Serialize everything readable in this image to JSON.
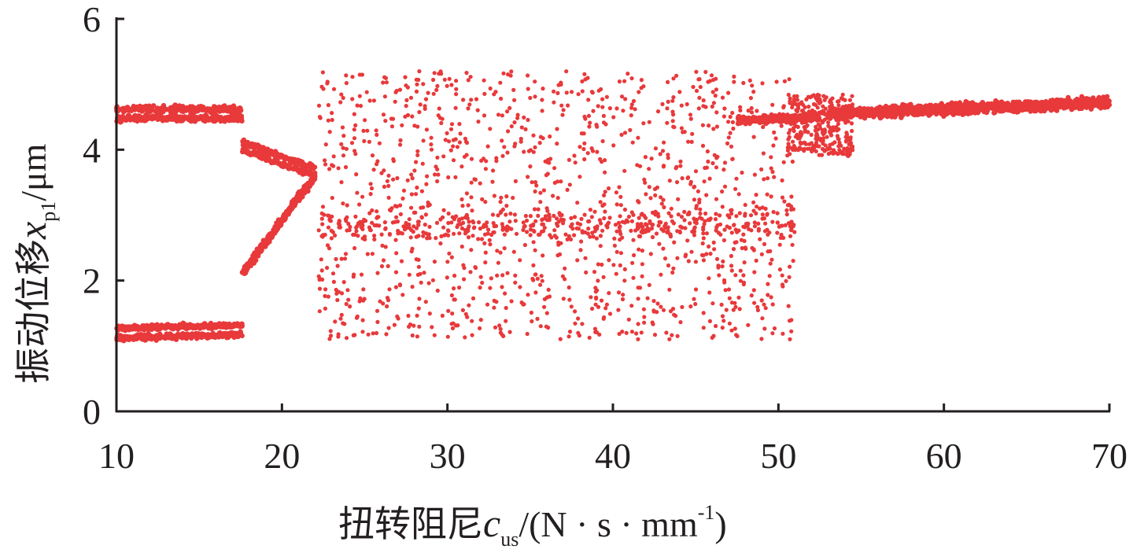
{
  "chart_data": {
    "type": "scatter",
    "title": "",
    "xlabel": {
      "prefix": "扭转阻尼",
      "var": "c",
      "sub": "us",
      "unit_open": "/(N · s · mm",
      "unit_sup": "-1",
      "unit_close": ")"
    },
    "ylabel": {
      "prefix": "振动位移",
      "var": "x",
      "sub": "p1",
      "unit": "/μm"
    },
    "xlim": [
      10,
      70
    ],
    "ylim": [
      0,
      6
    ],
    "xticks": [
      "10",
      "20",
      "30",
      "40",
      "50",
      "60",
      "70"
    ],
    "yticks": [
      "0",
      "2",
      "4",
      "6"
    ],
    "grid": false,
    "legend": "none",
    "colors": {
      "points": "#e8393b",
      "axis": "#231f20"
    },
    "series": [
      {
        "kind": "band",
        "x": [
          10,
          17.6
        ],
        "y_start": [
          4.62,
          4.48
        ],
        "y_end": [
          4.62,
          4.48
        ],
        "spread": 0.07
      },
      {
        "kind": "band",
        "x": [
          10,
          17.6
        ],
        "y_start": [
          1.27,
          1.12
        ],
        "y_end": [
          1.32,
          1.18
        ],
        "spread": 0.06
      },
      {
        "kind": "band",
        "x": [
          17.6,
          22
        ],
        "y_start": [
          4.12,
          4.0
        ],
        "y_end": [
          3.72,
          3.6
        ],
        "spread": 0.06
      },
      {
        "kind": "band",
        "x": [
          17.6,
          22
        ],
        "y_start": [
          2.1
        ],
        "y_end": [
          3.6
        ],
        "spread": 0.1
      },
      {
        "kind": "chaos",
        "x": [
          22.2,
          51
        ],
        "y": [
          1.1,
          5.2
        ],
        "approx_points": 1600
      },
      {
        "kind": "band",
        "x": [
          47.5,
          52.5
        ],
        "y_start": [
          4.45
        ],
        "y_end": [
          4.5
        ],
        "spread": 0.08
      },
      {
        "kind": "cloud",
        "x": [
          50.5,
          54.5
        ],
        "y": [
          3.9,
          4.85
        ],
        "approx_points": 300
      },
      {
        "kind": "band",
        "x": [
          53,
          70
        ],
        "y_start": [
          4.55
        ],
        "y_end": [
          4.72
        ],
        "spread": 0.12
      }
    ]
  }
}
